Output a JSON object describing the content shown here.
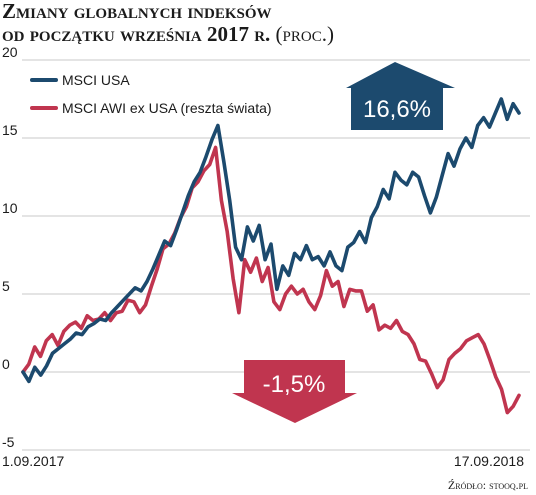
{
  "title": {
    "line1": "Zmiany globalnych indeksów",
    "line2": "od początku września 2017 r.",
    "unit": "(proc.)"
  },
  "source": "Źródło: stooq.pl",
  "colors": {
    "usa": "#1c4a6e",
    "world": "#c0354f",
    "grid": "#c9c9c9",
    "text": "#1b1b1b"
  },
  "chart_data": {
    "type": "line",
    "xlabels": [
      "1.09.2017",
      "17.09.2018"
    ],
    "yticks": [
      "20",
      "15",
      "10",
      "5",
      "0",
      "-5"
    ],
    "ylim": [
      -5,
      20
    ],
    "grid": true,
    "legend_position": "top-left",
    "series": [
      {
        "name": "MSCI USA",
        "color": "#1c4a6e",
        "end_label": "16,6%",
        "values": [
          0,
          -0.6,
          0.3,
          -0.2,
          0.4,
          1.2,
          1.5,
          1.8,
          2.1,
          2.5,
          2.4,
          2.9,
          3.1,
          3.4,
          3.3,
          3.8,
          4.2,
          4.6,
          5.0,
          5.4,
          5.2,
          5.8,
          6.6,
          7.5,
          8.4,
          8.1,
          9.1,
          10.2,
          11.3,
          12.2,
          12.8,
          13.8,
          14.9,
          15.8,
          13.5,
          11.0,
          8.0,
          7.2,
          9.3,
          8.4,
          9.4,
          7.2,
          8.2,
          5.3,
          6.8,
          6.2,
          7.6,
          7.2,
          8.1,
          7.2,
          7.4,
          6.8,
          7.7,
          6.8,
          6.5,
          8.0,
          8.3,
          9.0,
          8.3,
          9.9,
          10.6,
          11.7,
          11.1,
          12.8,
          12.3,
          12.0,
          12.8,
          12.5,
          11.3,
          10.2,
          11.2,
          12.6,
          14.0,
          13.2,
          14.3,
          15.0,
          14.4,
          15.8,
          16.3,
          15.7,
          16.6,
          17.5,
          16.2,
          17.2,
          16.6
        ]
      },
      {
        "name": "MSCI AWI ex USA (reszta świata)",
        "color": "#c0354f",
        "end_label": "-1,5%",
        "values": [
          0,
          0.5,
          1.6,
          1.0,
          2.0,
          2.4,
          1.7,
          2.6,
          3.0,
          3.2,
          2.8,
          3.6,
          3.3,
          3.4,
          3.8,
          3.3,
          3.8,
          3.9,
          4.6,
          4.5,
          3.8,
          4.3,
          5.5,
          6.6,
          7.9,
          8.2,
          8.9,
          9.9,
          10.6,
          11.8,
          12.2,
          12.9,
          13.3,
          14.4,
          11.0,
          9.0,
          6.0,
          3.8,
          7.2,
          6.4,
          7.3,
          5.8,
          6.7,
          4.5,
          4.0,
          5.0,
          5.5,
          5.0,
          5.3,
          4.5,
          4.0,
          4.9,
          6.5,
          5.5,
          5.8,
          4.2,
          5.3,
          5.2,
          5.2,
          3.9,
          4.3,
          2.7,
          3.0,
          2.8,
          3.3,
          2.6,
          2.4,
          1.8,
          0.8,
          0.7,
          -0.1,
          -1.0,
          -0.5,
          0.8,
          1.2,
          1.5,
          2.0,
          2.2,
          2.4,
          1.8,
          0.8,
          -0.3,
          -1.1,
          -2.6,
          -2.2,
          -1.5
        ]
      }
    ]
  }
}
